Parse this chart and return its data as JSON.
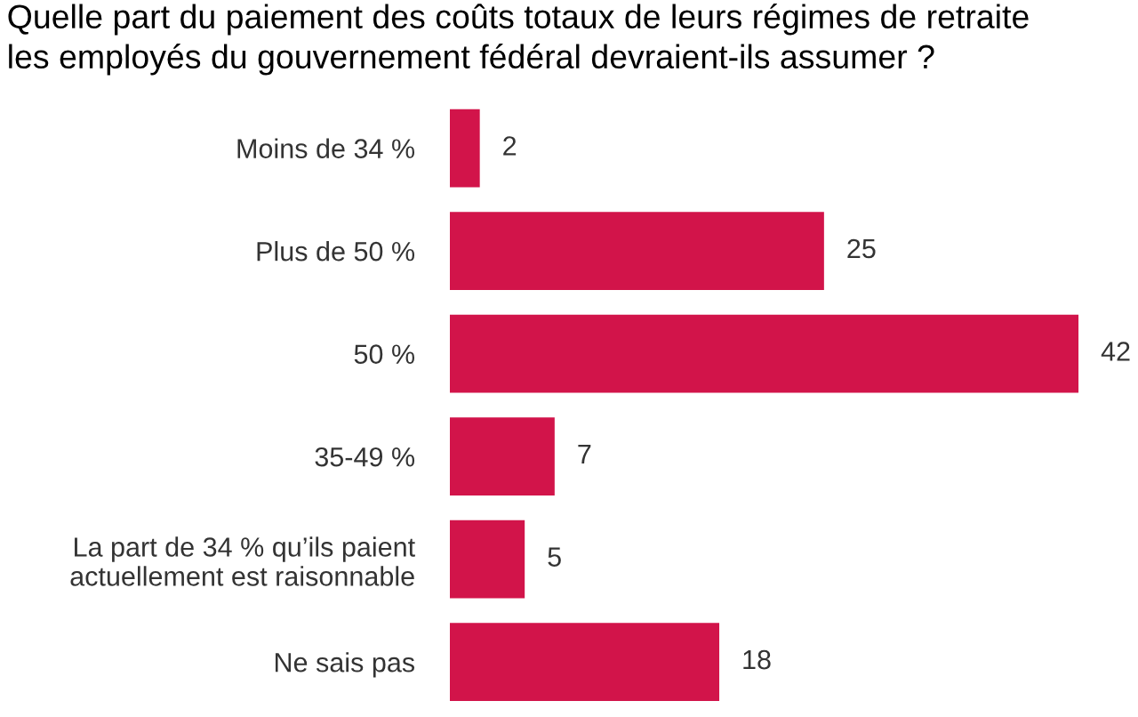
{
  "chart_data": {
    "type": "bar",
    "orientation": "horizontal",
    "title": "Quelle part du paiement des coûts totaux de leurs régimes de retraite\nles employés du gouvernement fédéral devraient-ils assumer ?",
    "categories": [
      "Moins de 34 %",
      "Plus de 50 %",
      "50 %",
      "35-49 %",
      "La part de 34 % qu’ils paient\nactuellement est raisonnable",
      "Ne sais pas"
    ],
    "values": [
      2,
      25,
      42,
      7,
      5,
      18
    ],
    "color": "#d2144a",
    "data_labels": true,
    "grid": false,
    "legend": false,
    "tick_labels": "y"
  }
}
